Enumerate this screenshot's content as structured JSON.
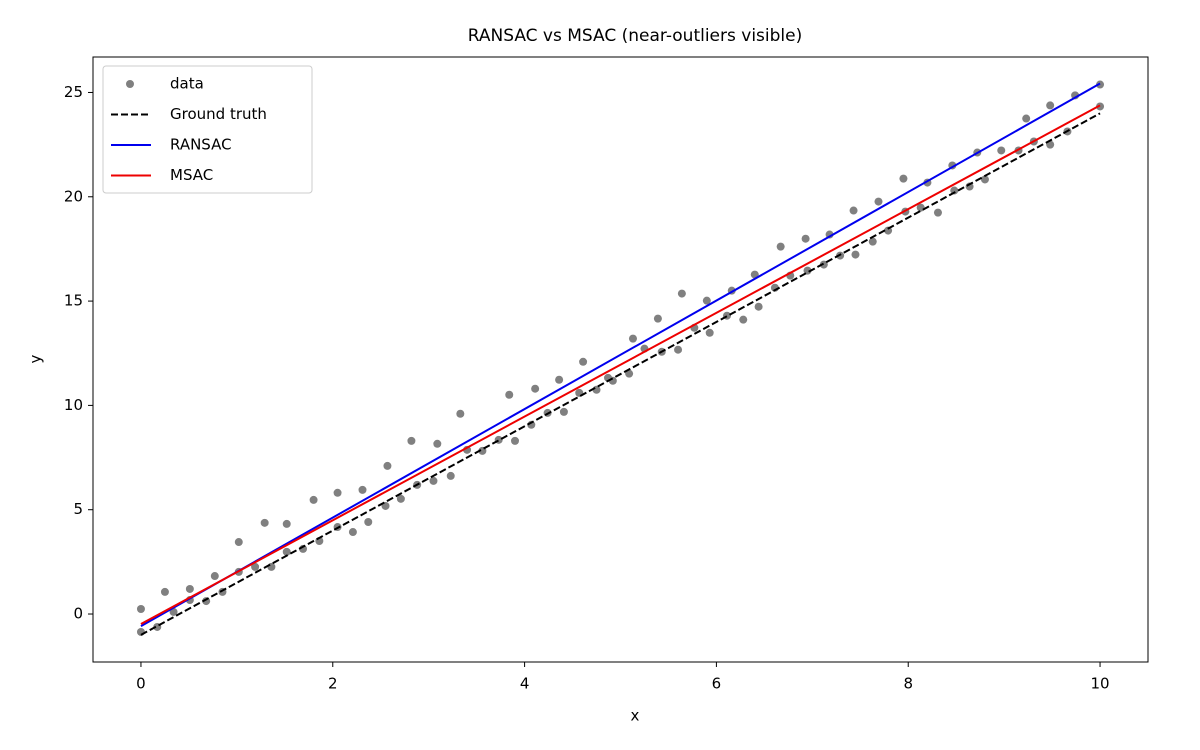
{
  "chart_data": {
    "type": "scatter",
    "title": "RANSAC vs MSAC (near-outliers visible)",
    "x_label": "x",
    "y_label": "y",
    "xlim": [
      -0.5,
      10.5
    ],
    "ylim": [
      -2.3,
      26.7
    ],
    "xticks": [
      0,
      2,
      4,
      6,
      8,
      10
    ],
    "yticks": [
      0,
      5,
      10,
      15,
      20,
      25
    ],
    "legend": "upper left",
    "series": [
      {
        "name": "data",
        "type": "scatter",
        "color": "#808080",
        "x": [
          0,
          0,
          0.17,
          0.25,
          0.34,
          0.51,
          0.51,
          0.68,
          0.77,
          0.85,
          1.02,
          1.02,
          1.19,
          1.29,
          1.36,
          1.52,
          1.52,
          1.69,
          1.8,
          1.86,
          2.05,
          2.05,
          2.21,
          2.31,
          2.37,
          2.57,
          2.55,
          2.71,
          2.82,
          2.88,
          3.05,
          3.09,
          3.23,
          3.33,
          3.4,
          3.56,
          3.73,
          3.84,
          3.9,
          4.07,
          4.11,
          4.24,
          4.36,
          4.41,
          4.57,
          4.61,
          4.75,
          4.87,
          4.92,
          5.09,
          5.13,
          5.25,
          5.39,
          5.43,
          5.6,
          5.64,
          5.77,
          5.9,
          5.93,
          6.11,
          6.16,
          6.28,
          6.4,
          6.44,
          6.61,
          6.67,
          6.77,
          6.93,
          6.95,
          7.12,
          7.18,
          7.29,
          7.43,
          7.45,
          7.63,
          7.69,
          7.79,
          7.95,
          7.97,
          8.13,
          8.2,
          8.31,
          8.46,
          8.48,
          8.64,
          8.72,
          8.8,
          8.97,
          9.15,
          9.23,
          9.31,
          9.48,
          9.48,
          9.66,
          9.74,
          10,
          10
        ],
        "y": [
          0.24,
          -0.86,
          -0.62,
          1.06,
          0.1,
          1.2,
          0.67,
          0.62,
          1.82,
          1.06,
          3.45,
          2.02,
          2.26,
          4.37,
          2.26,
          4.32,
          2.98,
          3.12,
          5.47,
          3.5,
          5.81,
          4.17,
          3.93,
          5.95,
          4.41,
          7.1,
          5.18,
          5.52,
          8.3,
          6.19,
          6.38,
          8.16,
          6.62,
          9.6,
          7.87,
          7.82,
          8.35,
          10.51,
          8.3,
          9.07,
          10.8,
          9.64,
          11.23,
          9.69,
          10.6,
          12.09,
          10.75,
          11.32,
          11.18,
          11.52,
          13.2,
          12.72,
          14.16,
          12.57,
          12.67,
          15.36,
          13.72,
          15.02,
          13.48,
          14.3,
          15.5,
          14.11,
          16.27,
          14.73,
          15.64,
          17.61,
          16.22,
          17.99,
          16.46,
          16.75,
          18.19,
          17.18,
          19.34,
          17.23,
          17.85,
          19.77,
          18.38,
          20.87,
          19.29,
          19.48,
          20.68,
          19.24,
          21.5,
          20.3,
          20.49,
          22.12,
          20.83,
          22.22,
          22.22,
          23.75,
          22.65,
          24.38,
          22.5,
          23.13,
          24.86,
          25.38,
          24.33
        ]
      },
      {
        "name": "Ground truth",
        "type": "line",
        "dash": true,
        "color": "#000000",
        "x": [
          0,
          10
        ],
        "y": [
          -1,
          24
        ]
      },
      {
        "name": "RANSAC",
        "type": "line",
        "color": "#0000ee",
        "x": [
          0,
          10
        ],
        "y": [
          -0.58,
          25.43
        ]
      },
      {
        "name": "MSAC",
        "type": "line",
        "color": "#ee0000",
        "x": [
          0,
          10
        ],
        "y": [
          -0.48,
          24.38
        ]
      }
    ]
  }
}
